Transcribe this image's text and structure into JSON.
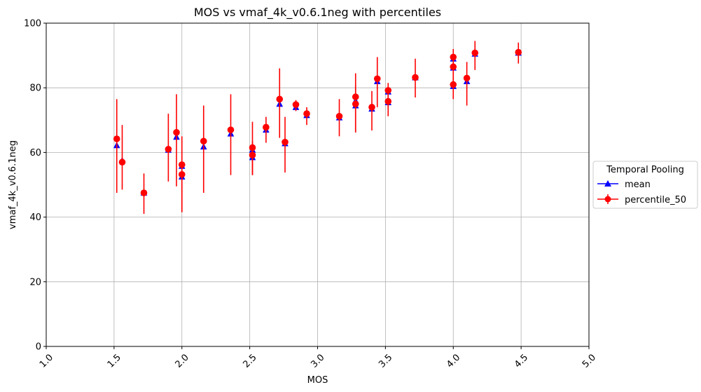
{
  "chart_data": {
    "type": "scatter",
    "title": "MOS vs vmaf_4k_v0.6.1neg with percentiles",
    "xlabel": "MOS",
    "ylabel": "vmaf_4k_v0.6.1neg",
    "xlim": [
      1.0,
      5.0
    ],
    "ylim": [
      0,
      100
    ],
    "xticks": [
      "1.0",
      "1.5",
      "2.0",
      "2.5",
      "3.0",
      "3.5",
      "4.0",
      "4.5",
      "5.0"
    ],
    "yticks": [
      "0",
      "20",
      "40",
      "60",
      "80",
      "100"
    ],
    "grid": true,
    "legend": {
      "title": "Temporal Pooling",
      "placement": "outside-right"
    },
    "series": [
      {
        "name": "mean",
        "color": "#0000ff",
        "marker": "triangle",
        "points": [
          {
            "x": 1.52,
            "y": 62.2
          },
          {
            "x": 1.56,
            "y": 57.5
          },
          {
            "x": 1.72,
            "y": 47.5
          },
          {
            "x": 1.9,
            "y": 60.8
          },
          {
            "x": 1.96,
            "y": 64.8
          },
          {
            "x": 2.0,
            "y": 55.8
          },
          {
            "x": 2.0,
            "y": 52.5
          },
          {
            "x": 2.16,
            "y": 61.8
          },
          {
            "x": 2.36,
            "y": 65.8
          },
          {
            "x": 2.52,
            "y": 60.8
          },
          {
            "x": 2.52,
            "y": 58.5
          },
          {
            "x": 2.62,
            "y": 67.0
          },
          {
            "x": 2.72,
            "y": 75.0
          },
          {
            "x": 2.76,
            "y": 62.8
          },
          {
            "x": 2.84,
            "y": 74.0
          },
          {
            "x": 2.92,
            "y": 71.5
          },
          {
            "x": 3.16,
            "y": 70.8
          },
          {
            "x": 3.28,
            "y": 76.0
          },
          {
            "x": 3.28,
            "y": 74.5
          },
          {
            "x": 3.4,
            "y": 73.5
          },
          {
            "x": 3.44,
            "y": 82.0
          },
          {
            "x": 3.52,
            "y": 78.8
          },
          {
            "x": 3.52,
            "y": 75.5
          },
          {
            "x": 3.72,
            "y": 83.2
          },
          {
            "x": 4.0,
            "y": 89.0
          },
          {
            "x": 4.0,
            "y": 86.2
          },
          {
            "x": 4.0,
            "y": 80.5
          },
          {
            "x": 4.1,
            "y": 82.0
          },
          {
            "x": 4.16,
            "y": 90.5
          },
          {
            "x": 4.48,
            "y": 90.8
          }
        ]
      },
      {
        "name": "percentile_50",
        "color": "#ff0000",
        "marker": "circle",
        "points": [
          {
            "x": 1.52,
            "y": 64.2,
            "ylow": 47.5,
            "yhigh": 76.5
          },
          {
            "x": 1.56,
            "y": 57.0,
            "ylow": 48.5,
            "yhigh": 68.5
          },
          {
            "x": 1.72,
            "y": 47.5,
            "ylow": 41.0,
            "yhigh": 53.5
          },
          {
            "x": 1.9,
            "y": 61.0,
            "ylow": 51.0,
            "yhigh": 72.0
          },
          {
            "x": 1.96,
            "y": 66.2,
            "ylow": 49.5,
            "yhigh": 78.0
          },
          {
            "x": 2.0,
            "y": 56.2,
            "ylow": 41.5,
            "yhigh": 65.0
          },
          {
            "x": 2.0,
            "y": 53.2,
            "ylow": 41.5,
            "yhigh": 56.0
          },
          {
            "x": 2.16,
            "y": 63.5,
            "ylow": 47.5,
            "yhigh": 74.5
          },
          {
            "x": 2.36,
            "y": 67.0,
            "ylow": 53.0,
            "yhigh": 78.0
          },
          {
            "x": 2.52,
            "y": 61.5,
            "ylow": 53.0,
            "yhigh": 69.5
          },
          {
            "x": 2.52,
            "y": 59.2,
            "ylow": 53.0,
            "yhigh": 63.5
          },
          {
            "x": 2.62,
            "y": 67.8,
            "ylow": 63.0,
            "yhigh": 71.0
          },
          {
            "x": 2.72,
            "y": 76.5,
            "ylow": 64.5,
            "yhigh": 86.0
          },
          {
            "x": 2.76,
            "y": 63.2,
            "ylow": 53.8,
            "yhigh": 71.0
          },
          {
            "x": 2.84,
            "y": 74.8,
            "ylow": 72.8,
            "yhigh": 76.2
          },
          {
            "x": 2.92,
            "y": 72.0,
            "ylow": 68.5,
            "yhigh": 74.0
          },
          {
            "x": 3.16,
            "y": 71.2,
            "ylow": 65.0,
            "yhigh": 76.5
          },
          {
            "x": 3.28,
            "y": 77.2,
            "ylow": 66.2,
            "yhigh": 84.5
          },
          {
            "x": 3.28,
            "y": 75.0,
            "ylow": 66.2,
            "yhigh": 81.0
          },
          {
            "x": 3.4,
            "y": 74.0,
            "ylow": 66.8,
            "yhigh": 79.0
          },
          {
            "x": 3.44,
            "y": 82.8,
            "ylow": 74.0,
            "yhigh": 89.5
          },
          {
            "x": 3.52,
            "y": 79.2,
            "ylow": 74.0,
            "yhigh": 81.5
          },
          {
            "x": 3.52,
            "y": 75.8,
            "ylow": 71.2,
            "yhigh": 79.5
          },
          {
            "x": 3.72,
            "y": 83.2,
            "ylow": 77.0,
            "yhigh": 89.0
          },
          {
            "x": 4.0,
            "y": 89.5,
            "ylow": 84.0,
            "yhigh": 92.0
          },
          {
            "x": 4.0,
            "y": 86.5,
            "ylow": 82.0,
            "yhigh": 90.0
          },
          {
            "x": 4.0,
            "y": 81.0,
            "ylow": 76.5,
            "yhigh": 83.5
          },
          {
            "x": 4.1,
            "y": 83.0,
            "ylow": 74.5,
            "yhigh": 88.0
          },
          {
            "x": 4.16,
            "y": 90.8,
            "ylow": 85.5,
            "yhigh": 94.5
          },
          {
            "x": 4.48,
            "y": 91.0,
            "ylow": 87.5,
            "yhigh": 94.0
          }
        ]
      }
    ]
  }
}
